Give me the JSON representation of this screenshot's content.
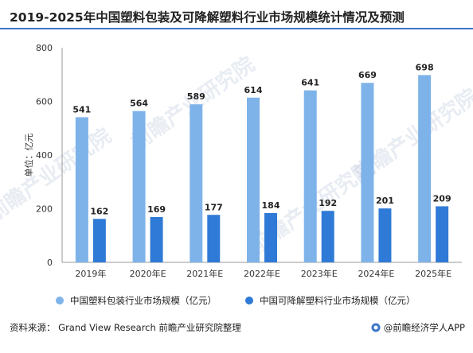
{
  "title": "2019-2025年中国塑料包装及可降解塑料行业市场规模统计情况及预测",
  "watermark_text": "前瞻产业研究院",
  "chart_data": {
    "type": "bar",
    "categories": [
      "2019年",
      "2020年E",
      "2021年E",
      "2022年E",
      "2023年E",
      "2024年E",
      "2025年E"
    ],
    "series": [
      {
        "name": "中国塑料包装行业市场规模（亿元）",
        "values": [
          541,
          564,
          589,
          614,
          641,
          669,
          698
        ],
        "color": "#7eb3e9"
      },
      {
        "name": "中国可降解塑料行业市场规模（亿元）",
        "values": [
          162,
          169,
          177,
          184,
          192,
          201,
          209
        ],
        "color": "#2f7ad6"
      }
    ],
    "ylabel": "单位：亿元",
    "ylim": [
      0,
      800
    ],
    "yticks": [
      0,
      200,
      400,
      600,
      800
    ],
    "grid": false,
    "legend": "bottom"
  },
  "source": "资料来源：  Grand View Research 前瞻产业研究院整理",
  "brand": "@前瞻经济学人APP"
}
